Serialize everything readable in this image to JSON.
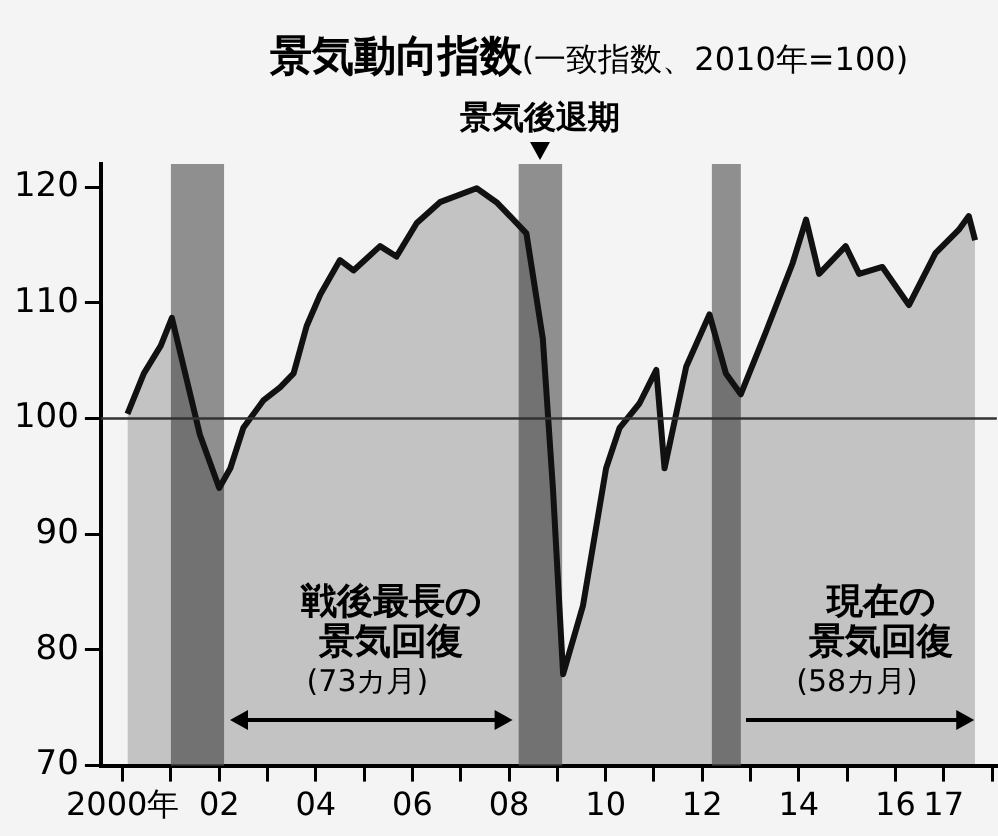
{
  "chart_data": {
    "type": "area",
    "title": "景気動向指数",
    "subtitle": "(一致指数、2010年=100)",
    "series": [
      {
        "color": "#111111",
        "x": [
          2000.1,
          2000.44,
          2000.79,
          2001.02,
          2001.33,
          2001.6,
          2002.0,
          2002.23,
          2002.5,
          2002.92,
          2003.26,
          2003.54,
          2003.81,
          2004.09,
          2004.5,
          2004.78,
          2005.33,
          2005.67,
          2006.09,
          2006.57,
          2007.33,
          2007.74,
          2008.02,
          2008.36,
          2008.7,
          2008.91,
          2009.12,
          2009.53,
          2010.01,
          2010.29,
          2010.7,
          2011.05,
          2011.22,
          2011.67,
          2012.15,
          2012.49,
          2012.8,
          2013.32,
          2013.87,
          2014.15,
          2014.42,
          2014.97,
          2015.25,
          2015.73,
          2016.28,
          2016.83,
          2017.31,
          2017.52,
          2017.65
        ],
        "values": [
          100.4,
          103.9,
          106.3,
          108.7,
          103.3,
          98.6,
          94.0,
          95.7,
          99.2,
          101.6,
          102.7,
          103.9,
          108.0,
          110.7,
          113.7,
          112.8,
          114.9,
          114.0,
          116.9,
          118.7,
          119.9,
          118.7,
          117.5,
          116.0,
          106.9,
          93.9,
          77.9,
          83.8,
          95.7,
          99.2,
          101.3,
          104.2,
          95.7,
          104.5,
          109.0,
          103.9,
          102.1,
          107.5,
          113.4,
          117.2,
          112.5,
          114.9,
          112.5,
          113.1,
          109.8,
          114.3,
          116.3,
          117.5,
          115.4
        ]
      }
    ],
    "xlim": [
      1999.55,
      2018.1
    ],
    "xticks": [
      {
        "value": 2000,
        "label": "2000年"
      },
      {
        "value": 2001,
        "label": null
      },
      {
        "value": 2002,
        "label": "02"
      },
      {
        "value": 2003,
        "label": null
      },
      {
        "value": 2004,
        "label": "04"
      },
      {
        "value": 2005,
        "label": null
      },
      {
        "value": 2006,
        "label": "06"
      },
      {
        "value": 2007,
        "label": null
      },
      {
        "value": 2008,
        "label": "08"
      },
      {
        "value": 2009,
        "label": null
      },
      {
        "value": 2010,
        "label": "10"
      },
      {
        "value": 2011,
        "label": null
      },
      {
        "value": 2012,
        "label": "12"
      },
      {
        "value": 2013,
        "label": null
      },
      {
        "value": 2014,
        "label": "14"
      },
      {
        "value": 2015,
        "label": null
      },
      {
        "value": 2016,
        "label": "16"
      },
      {
        "value": 2017,
        "label": "17"
      },
      {
        "value": 2018,
        "label": null
      }
    ],
    "ylim": [
      70,
      122
    ],
    "yticks": [
      70,
      80,
      90,
      100,
      110,
      120
    ],
    "grid": false,
    "legend": false,
    "bands": [
      {
        "axis": "x",
        "from": 2001.0,
        "to": 2002.1,
        "color": "#6e6e6e"
      },
      {
        "axis": "x",
        "from": 2008.2,
        "to": 2009.1,
        "color": "#6e6e6e",
        "label": "景気後退期"
      },
      {
        "axis": "x",
        "from": 2012.2,
        "to": 2012.8,
        "color": "#6e6e6e"
      }
    ],
    "ref_lines": [
      {
        "axis": "y",
        "value": 100,
        "color": "#333333"
      }
    ],
    "annotations": [
      "戦後最長の",
      "景気回復",
      "(73カ月)",
      "現在の",
      "景気回復",
      "(58カ月)"
    ]
  }
}
